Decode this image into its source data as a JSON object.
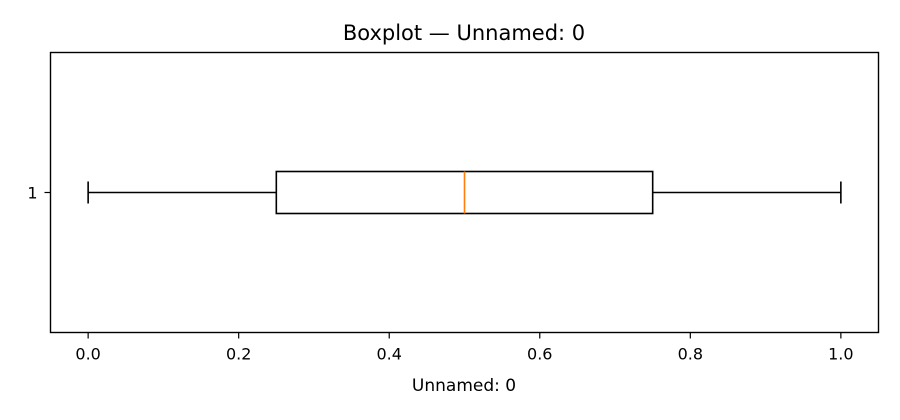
{
  "chart_data": {
    "type": "boxplot",
    "orientation": "horizontal",
    "title": "Boxplot — Unnamed: 0",
    "xlabel": "Unnamed: 0",
    "ylabel": "",
    "xlim": [
      -0.05,
      1.05
    ],
    "x_ticks": [
      0.0,
      0.2,
      0.4,
      0.6,
      0.8,
      1.0
    ],
    "x_tick_labels": [
      "0.0",
      "0.2",
      "0.4",
      "0.6",
      "0.8",
      "1.0"
    ],
    "categories": [
      "1"
    ],
    "boxes": [
      {
        "category": "1",
        "whisker_low": 0.0,
        "q1": 0.25,
        "median": 0.5,
        "q3": 0.75,
        "whisker_high": 1.0
      }
    ],
    "grid": false,
    "colors": {
      "box": "#000000",
      "median": "#ff7f0e",
      "whisker": "#000000",
      "axes": "#000000"
    }
  }
}
